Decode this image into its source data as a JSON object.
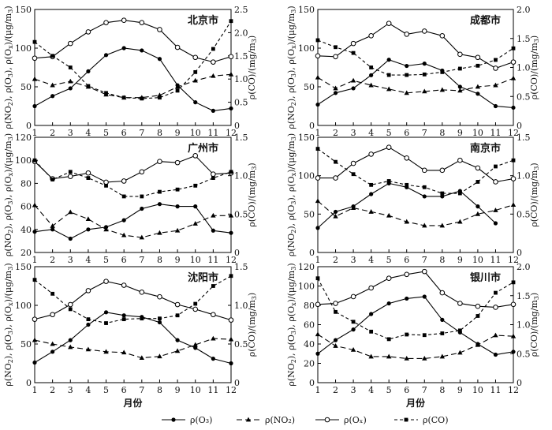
{
  "figure": {
    "xlabel": "月份",
    "left_ylabel_parts": [
      "ρ(NO",
      "2",
      "), ρ(O",
      "3",
      "), ρ(O",
      "x",
      ")/(μg/m",
      "3",
      ")"
    ],
    "right_ylabel_parts": [
      "ρ(CO)/(mg/m",
      "3",
      ")"
    ],
    "legend": [
      {
        "key": "O3",
        "label": "ρ(O₃)",
        "marker": "circle-filled",
        "dash": "solid"
      },
      {
        "key": "NO2",
        "label": "ρ(NO₂)",
        "marker": "triangle-filled",
        "dash": "long-dash"
      },
      {
        "key": "Ox",
        "label": "ρ(Oₓ)",
        "marker": "circle-open",
        "dash": "solid"
      },
      {
        "key": "CO",
        "label": "ρ(CO)",
        "marker": "square-filled",
        "dash": "short-dash"
      }
    ]
  },
  "chart_data": [
    {
      "type": "line",
      "title": "北京市",
      "x": [
        1,
        2,
        3,
        4,
        5,
        6,
        7,
        8,
        9,
        10,
        11,
        12
      ],
      "ylim": [
        0,
        150
      ],
      "yticks": [
        0,
        50,
        100,
        150
      ],
      "y2lim": [
        0,
        2.5
      ],
      "y2ticks": [
        "0",
        "0.5",
        "1.0",
        "1.5",
        "2.0",
        "2.5"
      ],
      "series": [
        {
          "name": "O3",
          "axis": "left",
          "values": [
            25,
            38,
            48,
            70,
            91,
            100,
            97,
            86,
            52,
            30,
            19,
            22
          ]
        },
        {
          "name": "NO2",
          "axis": "left",
          "values": [
            60,
            52,
            57,
            50,
            40,
            36,
            36,
            39,
            50,
            58,
            64,
            66
          ]
        },
        {
          "name": "Ox",
          "axis": "left",
          "values": [
            87,
            89,
            106,
            121,
            133,
            136,
            133,
            124,
            101,
            88,
            82,
            89
          ]
        },
        {
          "name": "CO",
          "axis": "right",
          "values": [
            1.8,
            1.5,
            1.25,
            0.85,
            0.7,
            0.6,
            0.58,
            0.6,
            0.75,
            1.15,
            1.65,
            2.25
          ]
        }
      ]
    },
    {
      "type": "line",
      "title": "成都市",
      "x": [
        1,
        2,
        3,
        4,
        5,
        6,
        7,
        8,
        9,
        10,
        11,
        12
      ],
      "ylim": [
        0,
        150
      ],
      "yticks": [
        0,
        50,
        100,
        150
      ],
      "y2lim": [
        0,
        2.0
      ],
      "y2ticks": [
        "0",
        "0.5",
        "1.0",
        "1.5",
        "2.0"
      ],
      "series": [
        {
          "name": "O3",
          "axis": "left",
          "values": [
            27,
            42,
            48,
            65,
            85,
            77,
            80,
            71,
            50,
            41,
            25,
            23
          ]
        },
        {
          "name": "NO2",
          "axis": "left",
          "values": [
            62,
            48,
            58,
            52,
            47,
            42,
            44,
            46,
            45,
            50,
            52,
            61
          ]
        },
        {
          "name": "Ox",
          "axis": "left",
          "values": [
            90,
            89,
            106,
            116,
            132,
            118,
            122,
            116,
            92,
            88,
            74,
            82
          ]
        },
        {
          "name": "CO",
          "axis": "right",
          "values": [
            1.47,
            1.35,
            1.25,
            1.0,
            0.87,
            0.87,
            0.88,
            0.92,
            0.98,
            1.03,
            1.13,
            1.33
          ]
        }
      ]
    },
    {
      "type": "line",
      "title": "广州市",
      "x": [
        1,
        2,
        3,
        4,
        5,
        6,
        7,
        8,
        9,
        10,
        11,
        12
      ],
      "ylim": [
        20,
        120
      ],
      "yticks": [
        20,
        40,
        60,
        80,
        100,
        120
      ],
      "y2lim": [
        0,
        1.5
      ],
      "y2ticks": [
        "0",
        "0.5",
        "1.0",
        "1.5"
      ],
      "series": [
        {
          "name": "O3",
          "axis": "left",
          "values": [
            38,
            40,
            32,
            40,
            42,
            48,
            58,
            62,
            60,
            60,
            39,
            37
          ]
        },
        {
          "name": "NO2",
          "axis": "left",
          "values": [
            61,
            43,
            55,
            49,
            40,
            35,
            33,
            37,
            39,
            45,
            52,
            52
          ]
        },
        {
          "name": "Ox",
          "axis": "left",
          "values": [
            99,
            84,
            86,
            89,
            81,
            82,
            90,
            99,
            98,
            104,
            88,
            89
          ]
        },
        {
          "name": "CO",
          "axis": "right",
          "values": [
            1.2,
            0.95,
            1.05,
            0.97,
            0.87,
            0.73,
            0.73,
            0.79,
            0.82,
            0.87,
            0.97,
            1.05
          ]
        }
      ]
    },
    {
      "type": "line",
      "title": "南京市",
      "x": [
        1,
        2,
        3,
        4,
        5,
        6,
        7,
        8,
        9,
        10,
        11,
        12
      ],
      "ylim": [
        0,
        150
      ],
      "yticks": [
        0,
        50,
        100,
        150
      ],
      "y2lim": [
        0,
        1.5
      ],
      "y2ticks": [
        "0",
        "0.5",
        "1.0",
        "1.5"
      ],
      "series": [
        {
          "name": "O3",
          "axis": "left",
          "values": [
            32,
            53,
            60,
            76,
            90,
            85,
            73,
            73,
            80,
            60,
            38,
            null
          ]
        },
        {
          "name": "NO2",
          "axis": "left",
          "values": [
            67,
            47,
            58,
            53,
            48,
            40,
            35,
            35,
            40,
            50,
            55,
            62
          ]
        },
        {
          "name": "Ox",
          "axis": "left",
          "values": [
            97,
            97,
            116,
            128,
            137,
            123,
            107,
            107,
            120,
            110,
            92,
            96
          ]
        },
        {
          "name": "CO",
          "axis": "right",
          "values": [
            1.35,
            1.18,
            1.02,
            0.88,
            0.93,
            0.88,
            0.85,
            0.77,
            0.77,
            0.92,
            1.12,
            1.2
          ]
        }
      ]
    },
    {
      "type": "line",
      "title": "沈阳市",
      "x": [
        1,
        2,
        3,
        4,
        5,
        6,
        7,
        8,
        9,
        10,
        11,
        12
      ],
      "ylim": [
        0,
        150
      ],
      "yticks": [
        0,
        50,
        100,
        150
      ],
      "y2lim": [
        0,
        1.5
      ],
      "y2ticks": [
        "0",
        "0.5",
        "1.0",
        "1.5"
      ],
      "series": [
        {
          "name": "O3",
          "axis": "left",
          "values": [
            26,
            40,
            55,
            75,
            91,
            87,
            85,
            78,
            55,
            45,
            31,
            25
          ]
        },
        {
          "name": "NO2",
          "axis": "left",
          "values": [
            55,
            50,
            46,
            43,
            40,
            39,
            32,
            34,
            41,
            49,
            57,
            56
          ]
        },
        {
          "name": "Ox",
          "axis": "left",
          "values": [
            82,
            88,
            101,
            119,
            131,
            126,
            117,
            111,
            101,
            95,
            88,
            81
          ]
        },
        {
          "name": "CO",
          "axis": "right",
          "values": [
            1.33,
            1.15,
            0.95,
            0.82,
            0.77,
            0.82,
            0.83,
            0.83,
            0.87,
            1.02,
            1.25,
            1.38
          ]
        }
      ]
    },
    {
      "type": "line",
      "title": "银川市",
      "x": [
        1,
        2,
        3,
        4,
        5,
        6,
        7,
        8,
        9,
        10,
        11,
        12
      ],
      "ylim": [
        0,
        120
      ],
      "yticks": [
        0,
        20,
        40,
        60,
        80,
        100,
        120
      ],
      "y2lim": [
        0,
        2.0
      ],
      "y2ticks": [
        "0",
        "0.5",
        "1.0",
        "1.5",
        "2.0"
      ],
      "series": [
        {
          "name": "O3",
          "axis": "left",
          "values": [
            30,
            44,
            55,
            71,
            82,
            87,
            89,
            65,
            52,
            40,
            29,
            32
          ]
        },
        {
          "name": "NO2",
          "axis": "left",
          "values": [
            50,
            38,
            34,
            27,
            27,
            25,
            25,
            27,
            31,
            39,
            49,
            48
          ]
        },
        {
          "name": "Ox",
          "axis": "left",
          "values": [
            81,
            82,
            89,
            98,
            108,
            112,
            115,
            93,
            82,
            79,
            78,
            81
          ]
        },
        {
          "name": "CO",
          "axis": "right",
          "values": [
            1.8,
            1.22,
            1.05,
            0.88,
            0.75,
            0.83,
            0.82,
            0.85,
            0.9,
            1.15,
            1.55,
            1.73
          ]
        }
      ]
    }
  ]
}
